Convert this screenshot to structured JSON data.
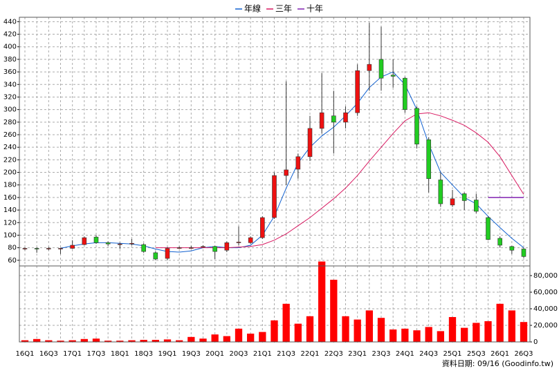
{
  "chart_data": {
    "type": "candlestick",
    "categories": [
      "16Q1",
      null,
      "16Q3",
      null,
      "17Q1",
      null,
      "17Q3",
      null,
      "18Q1",
      null,
      "18Q3",
      null,
      "19Q1",
      null,
      "19Q3",
      null,
      "20Q1",
      null,
      "20Q3",
      null,
      "21Q1",
      null,
      "21Q3",
      null,
      "22Q1",
      null,
      "22Q3",
      null,
      "23Q1",
      null,
      "23Q3",
      null,
      "24Q1",
      null,
      "24Q3",
      null,
      "25Q1",
      null,
      "25Q3",
      null,
      "26Q1",
      null,
      "26Q3"
    ],
    "open": [
      78,
      79,
      79,
      78,
      79,
      85,
      97,
      88,
      86,
      86,
      85,
      72,
      63,
      80,
      80,
      82,
      82,
      76,
      88,
      88,
      96,
      128,
      195,
      205,
      225,
      270,
      290,
      280,
      295,
      362,
      380,
      355,
      350,
      302,
      252,
      188,
      148,
      166,
      156,
      128,
      95,
      82,
      78
    ],
    "high": [
      80,
      80,
      81,
      80,
      92,
      98,
      100,
      90,
      88,
      94,
      87,
      74,
      81,
      82,
      83,
      84,
      83,
      90,
      114,
      98,
      130,
      200,
      345,
      230,
      290,
      358,
      330,
      305,
      372,
      438,
      432,
      380,
      352,
      305,
      256,
      200,
      172,
      168,
      166,
      130,
      98,
      83,
      80
    ],
    "low": [
      76,
      72,
      76,
      70,
      78,
      84,
      86,
      83,
      78,
      84,
      72,
      60,
      60,
      78,
      78,
      80,
      62,
      73,
      84,
      86,
      94,
      126,
      180,
      190,
      218,
      262,
      230,
      270,
      290,
      330,
      330,
      335,
      295,
      238,
      168,
      145,
      145,
      140,
      135,
      92,
      80,
      70,
      64
    ],
    "close": [
      79,
      78,
      79,
      79,
      84,
      96,
      88,
      86,
      86,
      87,
      74,
      62,
      79,
      80,
      80,
      82,
      74,
      88,
      89,
      96,
      128,
      195,
      204,
      225,
      270,
      295,
      280,
      295,
      362,
      372,
      350,
      353,
      300,
      245,
      190,
      150,
      158,
      155,
      138,
      93,
      84,
      76,
      66
    ],
    "up_color": "#ee1111",
    "down_color": "#22cc22",
    "ylim": [
      51,
      447
    ],
    "yticks": [
      60,
      80,
      100,
      120,
      140,
      160,
      180,
      200,
      220,
      240,
      260,
      280,
      300,
      320,
      340,
      360,
      380,
      400,
      420,
      440
    ],
    "series": [
      {
        "name": "年線",
        "color": "#1060d0",
        "values": [
          null,
          null,
          null,
          79,
          83,
          86,
          88,
          88,
          87,
          86,
          83,
          78,
          74,
          73,
          75,
          80,
          82,
          80,
          80,
          84,
          100,
          130,
          175,
          215,
          240,
          258,
          272,
          290,
          310,
          335,
          352,
          360,
          340,
          300,
          245,
          200,
          180,
          160,
          150,
          130,
          112,
          95,
          80
        ]
      },
      {
        "name": "三年",
        "color": "#d81860",
        "values": [
          null,
          null,
          null,
          null,
          null,
          null,
          null,
          null,
          null,
          null,
          null,
          80,
          80,
          80,
          80,
          80,
          80,
          80,
          81,
          82,
          85,
          92,
          102,
          115,
          128,
          143,
          158,
          175,
          195,
          218,
          240,
          262,
          282,
          293,
          295,
          290,
          283,
          275,
          263,
          248,
          225,
          195,
          165
        ]
      },
      {
        "name": "十年",
        "color": "#8020b0",
        "values": [
          null,
          null,
          null,
          null,
          null,
          null,
          null,
          null,
          null,
          null,
          null,
          null,
          null,
          null,
          null,
          null,
          null,
          null,
          null,
          null,
          null,
          null,
          null,
          null,
          null,
          null,
          null,
          null,
          null,
          null,
          null,
          null,
          null,
          null,
          null,
          null,
          null,
          null,
          null,
          160,
          160,
          160,
          160
        ]
      }
    ],
    "volume": {
      "color": "#ff0000",
      "ylim": [
        0,
        97500
      ],
      "yticks": [
        0,
        {
          "value": 20000,
          "label": "20,000"
        },
        {
          "value": 40000,
          "label": "40,000"
        },
        {
          "value": 60000,
          "label": "60,000"
        },
        {
          "value": 80000,
          "label": "80,000"
        }
      ],
      "values": [
        2000,
        3500,
        2000,
        1500,
        2000,
        3500,
        4000,
        1500,
        1500,
        2000,
        2500,
        2500,
        3000,
        2000,
        6000,
        4000,
        9000,
        7000,
        16000,
        10000,
        12000,
        26000,
        46000,
        22000,
        31000,
        97000,
        75000,
        31000,
        27000,
        38000,
        29000,
        15000,
        16000,
        14000,
        18000,
        13000,
        30000,
        17000,
        23000,
        25000,
        46000,
        38000,
        24000
      ]
    },
    "grid": true,
    "footer": "資料日期: 09/16 (Goodinfo.tw)"
  }
}
